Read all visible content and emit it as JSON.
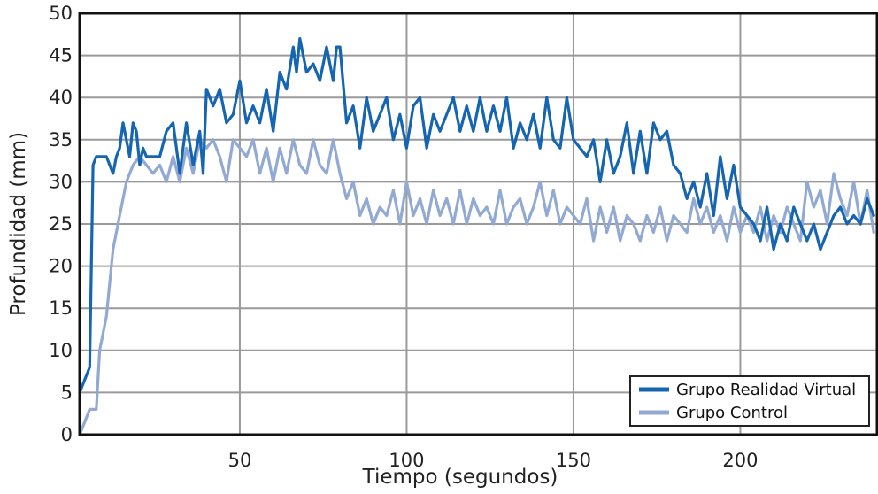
{
  "chart_data": {
    "type": "line",
    "title": "",
    "xlabel": "Tiempo (segundos)",
    "ylabel": "Profundidad (mm)",
    "xlim": [
      2,
      241
    ],
    "ylim": [
      0,
      50
    ],
    "x_ticks": [
      50,
      100,
      150,
      200
    ],
    "y_ticks": [
      0,
      5,
      10,
      15,
      20,
      25,
      30,
      35,
      40,
      45,
      50
    ],
    "grid": true,
    "legend_position": "bottom-right",
    "series": [
      {
        "name": "Grupo Realidad Virtual",
        "color": "#1565b0",
        "x": [
          2,
          4,
          5,
          6,
          7,
          8,
          10,
          12,
          13,
          14,
          15,
          17,
          18,
          19,
          20,
          21,
          22,
          24,
          26,
          28,
          30,
          32,
          34,
          36,
          38,
          39,
          40,
          42,
          44,
          46,
          48,
          50,
          52,
          54,
          56,
          58,
          60,
          62,
          64,
          66,
          67,
          68,
          70,
          72,
          74,
          76,
          78,
          79,
          80,
          82,
          84,
          86,
          88,
          90,
          92,
          94,
          96,
          98,
          100,
          102,
          104,
          106,
          108,
          110,
          112,
          114,
          116,
          118,
          120,
          122,
          124,
          126,
          128,
          130,
          132,
          134,
          136,
          138,
          140,
          142,
          144,
          146,
          148,
          150,
          152,
          154,
          156,
          158,
          160,
          162,
          164,
          166,
          168,
          170,
          172,
          174,
          176,
          178,
          180,
          182,
          184,
          186,
          188,
          190,
          192,
          194,
          196,
          198,
          200,
          202,
          204,
          206,
          208,
          210,
          212,
          214,
          216,
          218,
          220,
          222,
          224,
          226,
          228,
          230,
          232,
          234,
          236,
          238,
          240
        ],
        "values": [
          5,
          7,
          8,
          32,
          33,
          33,
          33,
          31,
          33,
          34,
          37,
          33,
          37,
          36,
          32,
          34,
          33,
          33,
          33,
          36,
          37,
          31,
          37,
          32,
          36,
          31,
          41,
          39,
          41,
          37,
          38,
          42,
          37,
          39,
          37,
          41,
          36,
          43,
          41,
          46,
          43,
          47,
          43,
          44,
          42,
          46,
          42,
          46,
          46,
          37,
          39,
          34,
          40,
          36,
          38,
          40,
          35,
          38,
          34,
          39,
          40,
          34,
          38,
          36,
          38,
          40,
          36,
          39,
          36,
          40,
          36,
          39,
          36,
          40,
          34,
          37,
          35,
          38,
          34,
          40,
          35,
          34,
          40,
          35,
          34,
          33,
          35,
          30,
          35,
          31,
          33,
          37,
          31,
          36,
          31,
          37,
          35,
          36,
          32,
          31,
          28,
          30,
          27,
          31,
          26,
          33,
          28,
          32,
          27,
          26,
          25,
          23,
          27,
          22,
          25,
          23,
          27,
          25,
          23,
          25,
          22,
          24,
          26,
          27,
          25,
          26,
          25,
          28,
          26
        ]
      },
      {
        "name": "Grupo Control",
        "color": "#91a9d3",
        "x": [
          2,
          3,
          4,
          5,
          6,
          7,
          8,
          10,
          12,
          14,
          16,
          18,
          20,
          22,
          24,
          26,
          28,
          30,
          32,
          34,
          36,
          38,
          40,
          42,
          44,
          46,
          48,
          50,
          52,
          54,
          56,
          58,
          60,
          62,
          64,
          66,
          68,
          70,
          72,
          74,
          76,
          78,
          80,
          82,
          84,
          86,
          88,
          90,
          92,
          94,
          96,
          98,
          100,
          102,
          104,
          106,
          108,
          110,
          112,
          114,
          116,
          118,
          120,
          122,
          124,
          126,
          128,
          130,
          132,
          134,
          136,
          138,
          140,
          142,
          144,
          146,
          148,
          150,
          152,
          154,
          156,
          158,
          160,
          162,
          164,
          166,
          168,
          170,
          172,
          174,
          176,
          178,
          180,
          182,
          184,
          186,
          188,
          190,
          192,
          194,
          196,
          198,
          200,
          202,
          204,
          206,
          208,
          210,
          212,
          214,
          216,
          218,
          220,
          222,
          224,
          226,
          228,
          230,
          232,
          234,
          236,
          238,
          240
        ],
        "values": [
          0,
          1,
          2,
          3,
          3,
          3,
          10,
          14,
          22,
          26,
          30,
          32,
          33,
          32,
          31,
          32,
          30,
          33,
          30,
          34,
          31,
          35,
          34,
          35,
          33,
          30,
          35,
          34,
          33,
          35,
          31,
          34,
          30,
          34,
          31,
          35,
          32,
          31,
          35,
          32,
          31,
          35,
          31,
          28,
          30,
          26,
          28,
          25,
          27,
          26,
          29,
          25,
          30,
          26,
          28,
          25,
          29,
          26,
          28,
          25,
          29,
          25,
          28,
          26,
          27,
          25,
          29,
          25,
          27,
          28,
          25,
          27,
          30,
          26,
          29,
          25,
          27,
          26,
          25,
          28,
          23,
          27,
          24,
          27,
          23,
          26,
          25,
          23,
          26,
          24,
          27,
          23,
          26,
          25,
          24,
          28,
          25,
          27,
          24,
          26,
          23,
          27,
          24,
          26,
          24,
          27,
          23,
          26,
          24,
          27,
          25,
          23,
          30,
          27,
          29,
          25,
          31,
          28,
          26,
          30,
          25,
          29,
          24
        ]
      }
    ]
  }
}
